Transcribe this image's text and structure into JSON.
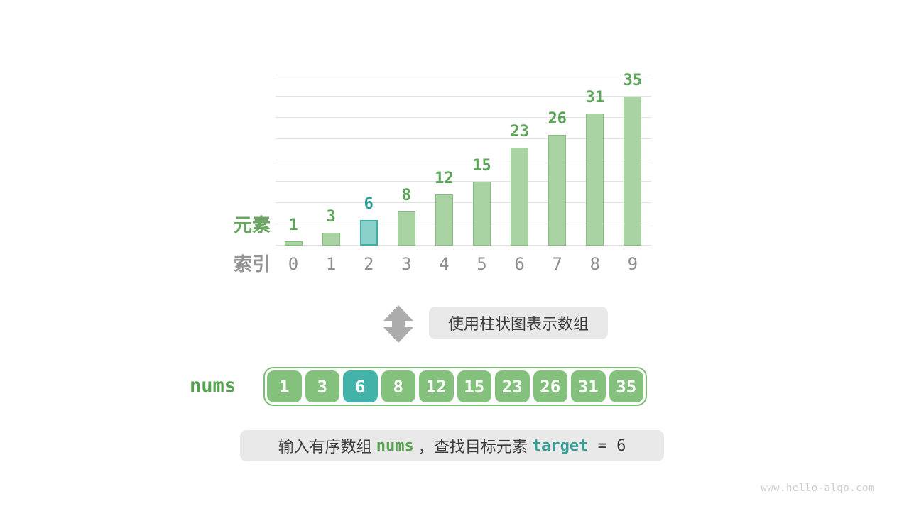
{
  "chart_data": {
    "type": "bar",
    "categories": [
      "0",
      "1",
      "2",
      "3",
      "4",
      "5",
      "6",
      "7",
      "8",
      "9"
    ],
    "values": [
      1,
      3,
      6,
      8,
      12,
      15,
      23,
      26,
      31,
      35
    ],
    "highlight_index": 2,
    "title": "",
    "xlabel": "索引",
    "ylabel": "元素",
    "ylim": [
      0,
      40
    ],
    "grid_step": 5,
    "grid": true,
    "legend": "none"
  },
  "chart": {
    "element_label": "元素",
    "index_label": "索引"
  },
  "transform": {
    "arrow_icon": "up-down-arrow",
    "caption": "使用柱状图表示数组"
  },
  "array": {
    "label": "nums",
    "values": [
      "1",
      "3",
      "6",
      "8",
      "12",
      "15",
      "23",
      "26",
      "31",
      "35"
    ],
    "highlight_index": 2
  },
  "statement": {
    "parts": [
      {
        "text": "输入有序数组 ",
        "style": "cn"
      },
      {
        "text": "nums",
        "style": "green"
      },
      {
        "text": " ，查找目标元素 ",
        "style": "cn"
      },
      {
        "text": "target",
        "style": "teal"
      },
      {
        "text": " = 6",
        "style": "dark"
      }
    ]
  },
  "watermark": "www.hello-algo.com",
  "colors": {
    "bar_fill": "#a9d3a2",
    "bar_border": "#85bd7e",
    "bar_highlight_fill": "#89d0c9",
    "bar_highlight_border": "#3fafa6",
    "value_label_green": "#5ba457",
    "value_label_teal": "#2f9d94",
    "index_gray": "#8f8f8f",
    "element_label_green": "#68a85f",
    "index_label_gray": "#949494",
    "gridline": "#e3e3e3",
    "annotation_box_bg": "#e9e9e9",
    "annotation_text": "#3a3a3a",
    "arrow_gray": "#acacac",
    "cell_green": "#83c17c",
    "cell_teal": "#43b3a9",
    "cell_text": "#ffffff",
    "array_border_green": "#7cbd74",
    "nums_label_green": "#55a24e",
    "target_teal": "#359e95",
    "watermark_gray": "#cccccc"
  }
}
